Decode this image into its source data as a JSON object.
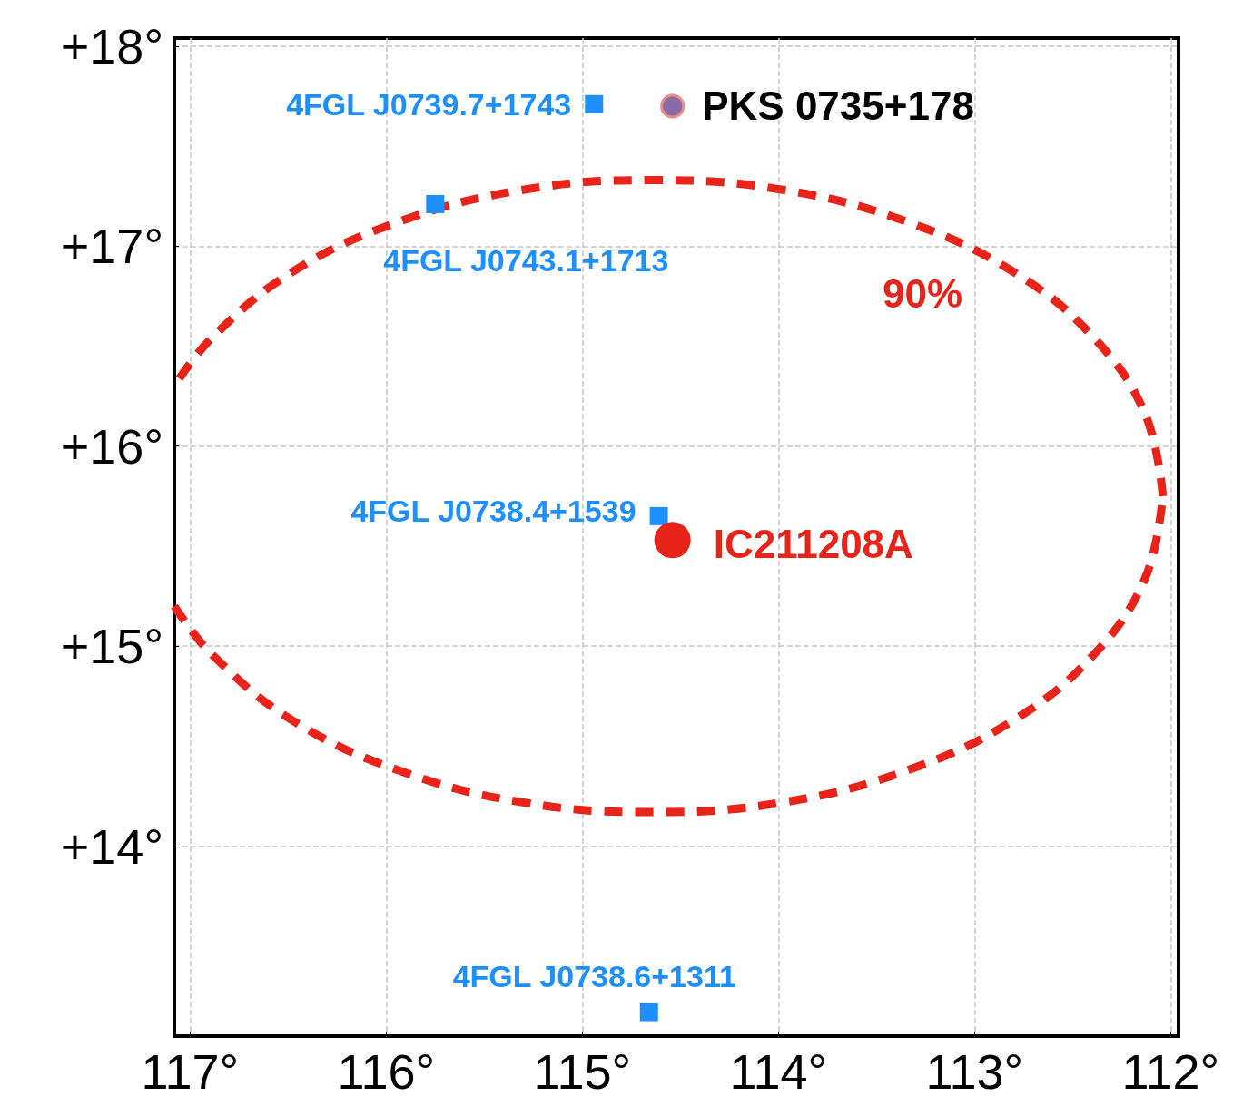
{
  "chart_data": {
    "type": "scatter",
    "xlim": [
      117.08,
      111.96
    ],
    "ylim": [
      13.05,
      18.04
    ],
    "xticks": [
      {
        "value": 117,
        "label": "117°"
      },
      {
        "value": 116,
        "label": "116°"
      },
      {
        "value": 115,
        "label": "115°"
      },
      {
        "value": 114,
        "label": "114°"
      },
      {
        "value": 113,
        "label": "113°"
      },
      {
        "value": 112,
        "label": "112°"
      }
    ],
    "yticks": [
      {
        "value": 14,
        "label": "+14°"
      },
      {
        "value": 15,
        "label": "+15°"
      },
      {
        "value": 16,
        "label": "+16°"
      },
      {
        "value": 17,
        "label": "+17°"
      },
      {
        "value": 18,
        "label": "+18°"
      }
    ],
    "grid": true,
    "legend": false,
    "annotations": [
      "90%"
    ],
    "series": [
      {
        "name": "4FGL J0739.7+1743",
        "marker": "square",
        "color": "#1e8fff",
        "x": [
          114.94
        ],
        "values": [
          17.71
        ]
      },
      {
        "name": "PKS 0735+178",
        "marker": "circle",
        "color": "#8a6aa8",
        "x": [
          114.54
        ],
        "values": [
          17.7
        ]
      },
      {
        "name": "4FGL J0743.1+1713",
        "marker": "square",
        "color": "#1e8fff",
        "x": [
          115.75
        ],
        "values": [
          17.21
        ]
      },
      {
        "name": "4FGL J0738.4+1539",
        "marker": "square",
        "color": "#1e8fff",
        "x": [
          114.61
        ],
        "values": [
          15.65
        ]
      },
      {
        "name": "IC211208A",
        "marker": "circle",
        "color": "#e8231a",
        "x": [
          114.54
        ],
        "values": [
          15.53
        ]
      },
      {
        "name": "4FGL J0738.6+1311",
        "marker": "square",
        "color": "#1e8fff",
        "x": [
          114.66
        ],
        "values": [
          13.17
        ]
      },
      {
        "type": "line",
        "marker": "none",
        "line_style": "dashed",
        "color": "#e8231a",
        "x": [
          112.04,
          112.13,
          112.39,
          112.8,
          113.34,
          113.97,
          114.64,
          115.31,
          115.94,
          116.48,
          116.89,
          117.08,
          null,
          117.08,
          116.89,
          116.48,
          115.94,
          115.31,
          114.64,
          113.97,
          113.34,
          112.8,
          112.39,
          112.13,
          112.04
        ],
        "values": [
          15.75,
          16.16,
          16.54,
          16.87,
          17.12,
          17.28,
          17.33,
          17.28,
          17.12,
          16.87,
          16.54,
          16.3,
          null,
          15.2,
          14.96,
          14.63,
          14.38,
          14.22,
          14.17,
          14.22,
          14.38,
          14.63,
          14.96,
          15.34,
          15.75
        ]
      }
    ]
  }
}
